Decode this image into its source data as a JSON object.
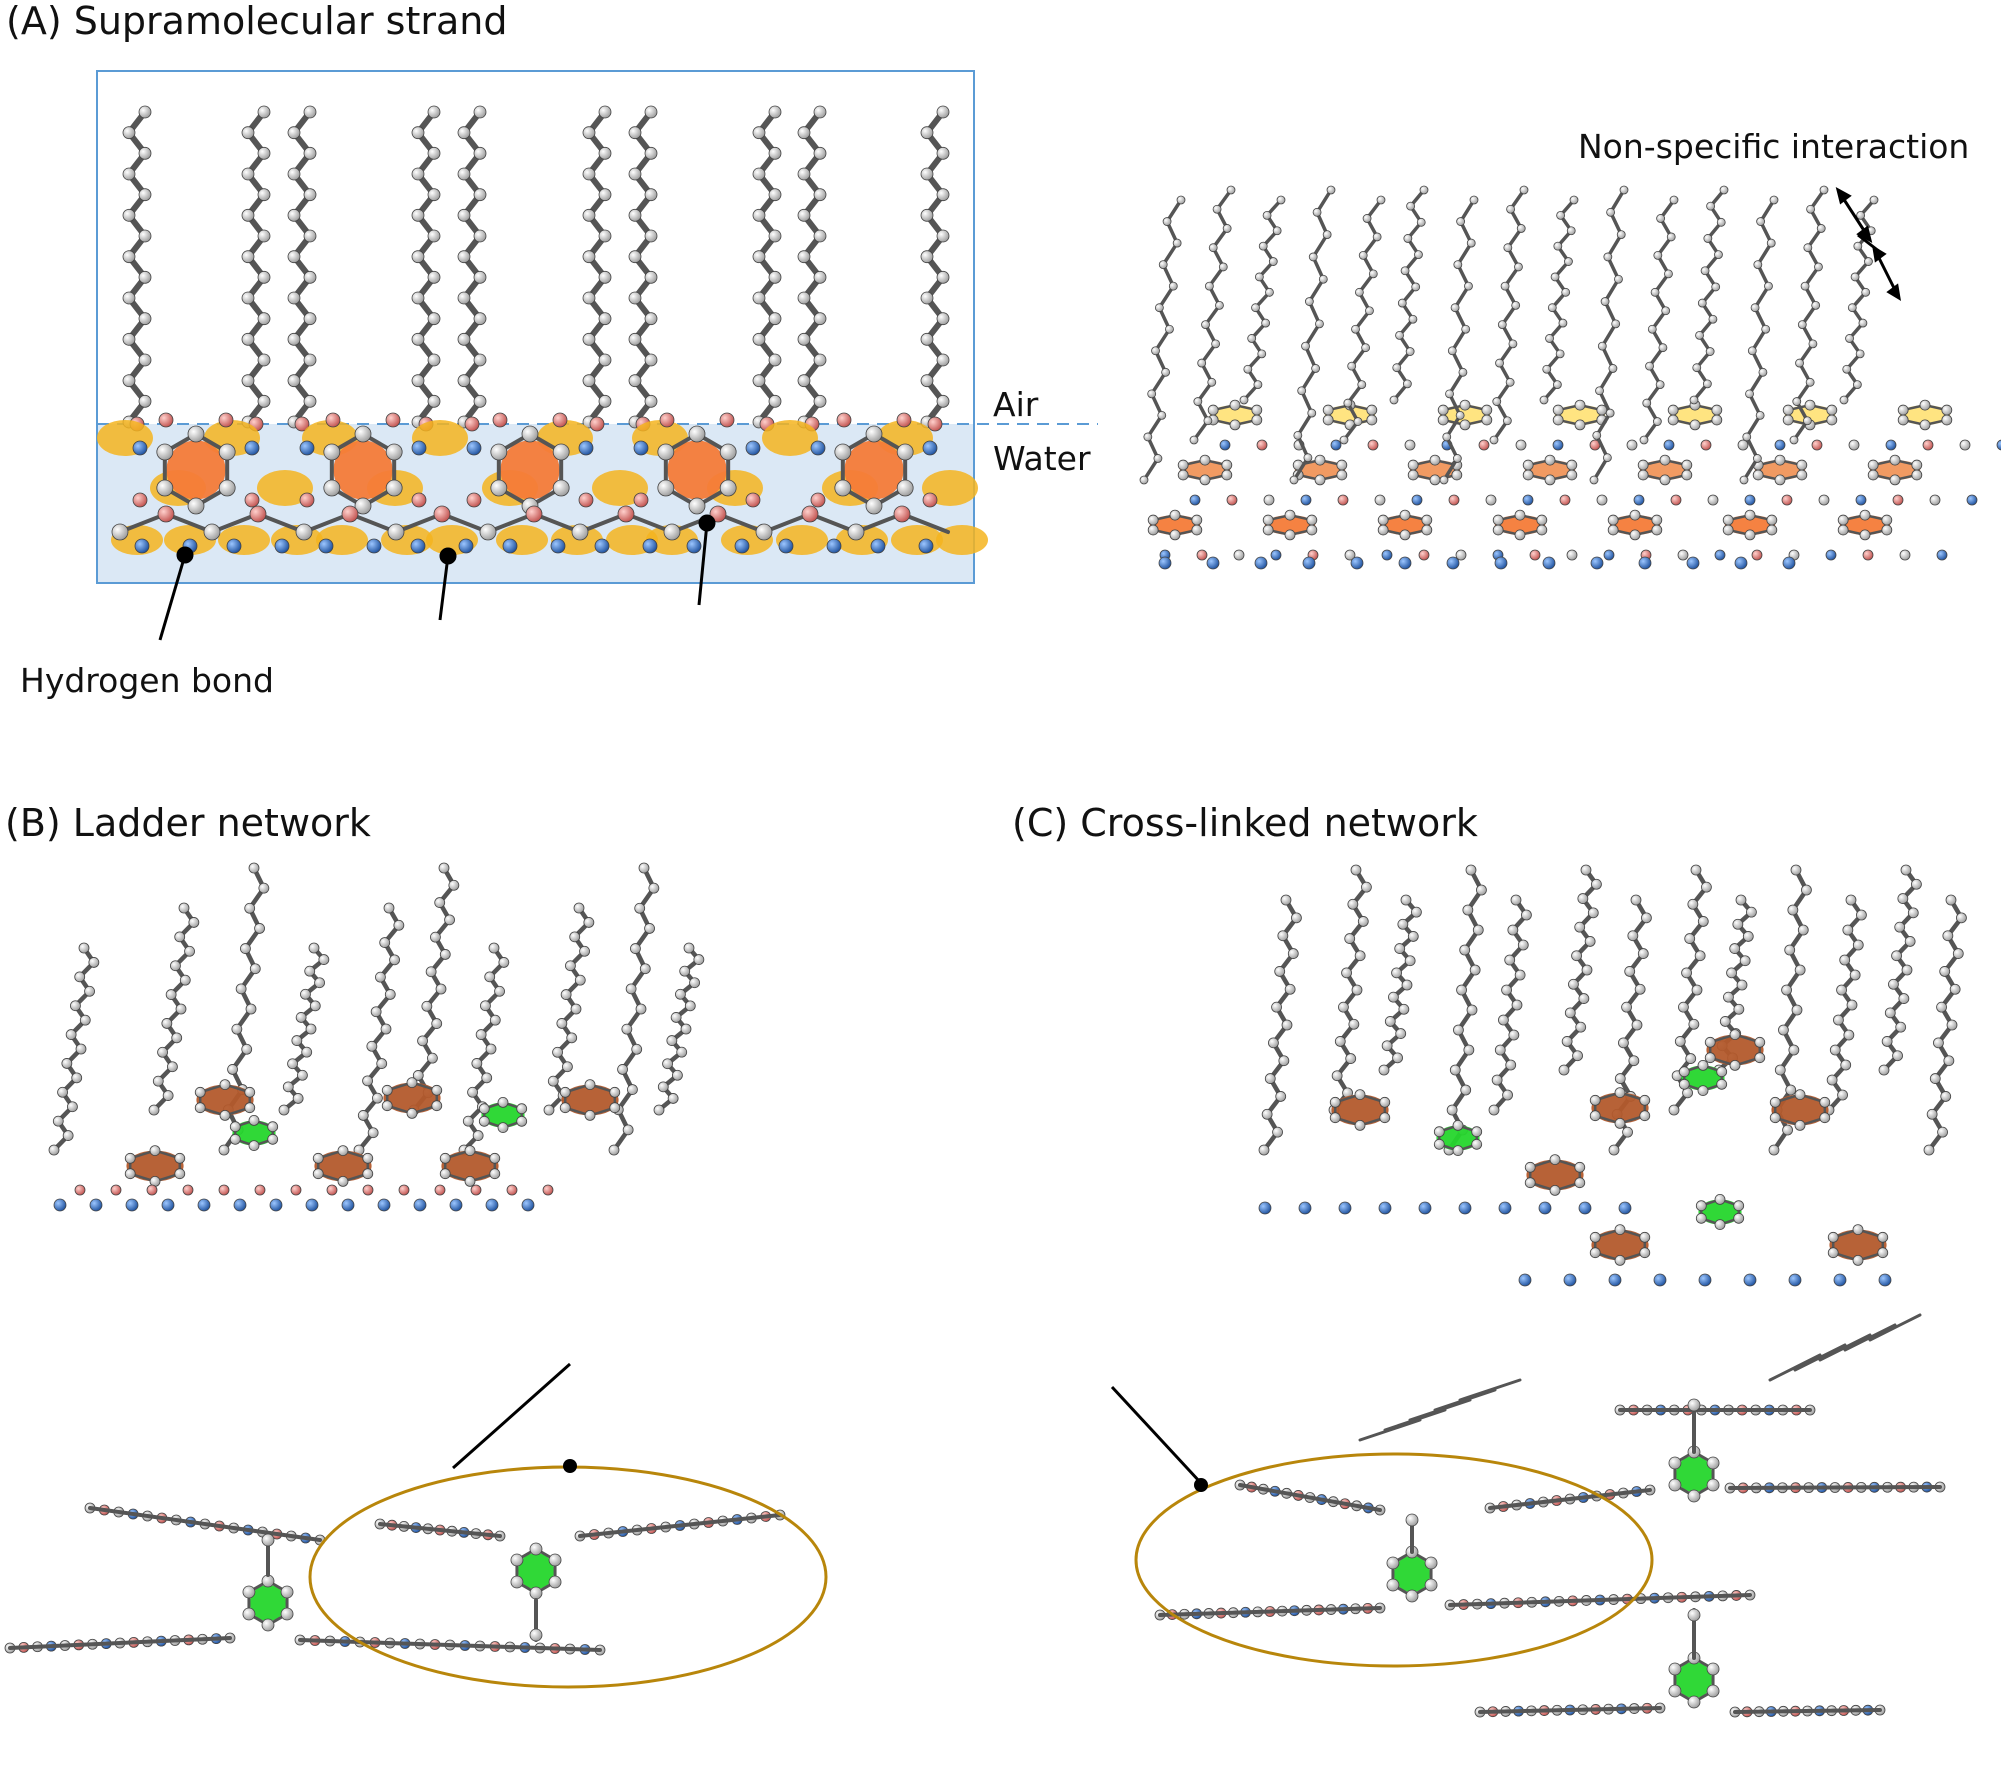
{
  "panels": {
    "a": {
      "title": "(A) Supramolecular strand",
      "air": "Air",
      "water": "Water",
      "hbond": "Hydrogen bond",
      "nonspecific": "Non-specific interaction"
    },
    "b": {
      "title": "(B) Ladder network"
    },
    "c": {
      "title": "(C) Cross-linked network"
    }
  },
  "colors": {
    "oxygen": "#e08a86",
    "nitrogen": "#2f72c4",
    "carbon": "#f2f2f2",
    "core_a": "#f47b38",
    "core_brown": "#b35a2c",
    "core_green": "#25d62c",
    "hbond_glow": "#f5b41e",
    "water": "#dbe8f5",
    "box_border": "#5b9bd5",
    "ellipse": "#b8860b"
  }
}
